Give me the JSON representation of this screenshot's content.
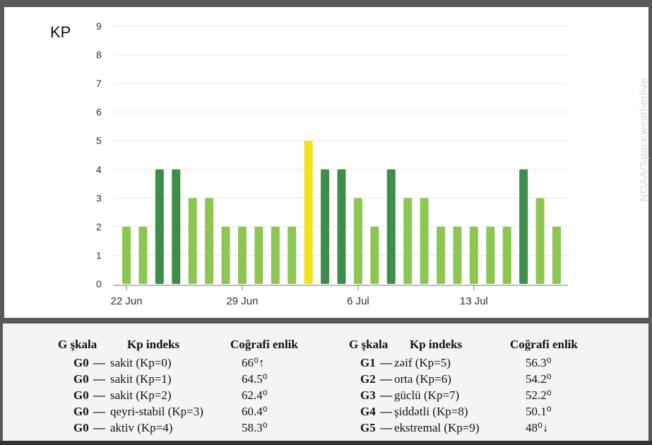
{
  "chart_data": {
    "type": "bar",
    "ylabel": "KP",
    "ylim": [
      0,
      9
    ],
    "yticks": [
      0,
      1,
      2,
      3,
      4,
      5,
      6,
      7,
      8,
      9
    ],
    "x_tick_labels": [
      {
        "label": "22 Jun",
        "bar_index": 0
      },
      {
        "label": "29 Jun",
        "bar_index": 7
      },
      {
        "label": "6 Jul",
        "bar_index": 14
      },
      {
        "label": "13 Jul",
        "bar_index": 21
      }
    ],
    "values": [
      2,
      2,
      4,
      4,
      3,
      3,
      2,
      2,
      2,
      2,
      2,
      5,
      4,
      4,
      3,
      2,
      4,
      3,
      3,
      2,
      2,
      2,
      2,
      2,
      4,
      3,
      2
    ],
    "level_colors": {
      "2": "#8dc653",
      "3": "#8dc653",
      "4": "#3f8d4a",
      "5": "#f2e21a"
    },
    "grid": true
  },
  "watermark": "NOAA/Spaceweatherlive",
  "scale_table": {
    "headers": [
      "G şkala",
      "Kp indeks",
      "Coğrafi enlik"
    ],
    "left": [
      {
        "g": "G0",
        "desc": "sakit (Kp=0)",
        "lat": "66⁰↑"
      },
      {
        "g": "G0",
        "desc": "sakit (Kp=1)",
        "lat": "64.5⁰"
      },
      {
        "g": "G0",
        "desc": "sakit (Kp=2)",
        "lat": "62.4⁰"
      },
      {
        "g": "G0",
        "desc": "qeyri-stabil (Kp=3)",
        "lat": "60.4⁰"
      },
      {
        "g": "G0",
        "desc": "aktiv (Kp=4)",
        "lat": "58.3⁰"
      }
    ],
    "right": [
      {
        "g": "G1",
        "desc": "zəif (Kp=5)",
        "lat": "56.3⁰"
      },
      {
        "g": "G2",
        "desc": "orta (Kp=6)",
        "lat": "54.2⁰"
      },
      {
        "g": "G3",
        "desc": "güclü (Kp=7)",
        "lat": "52.2⁰"
      },
      {
        "g": "G4",
        "desc": "şiddətli (Kp=8)",
        "lat": "50.1⁰"
      },
      {
        "g": "G5",
        "desc": "ekstremal (Kp=9)",
        "lat": "48⁰↓"
      }
    ]
  }
}
